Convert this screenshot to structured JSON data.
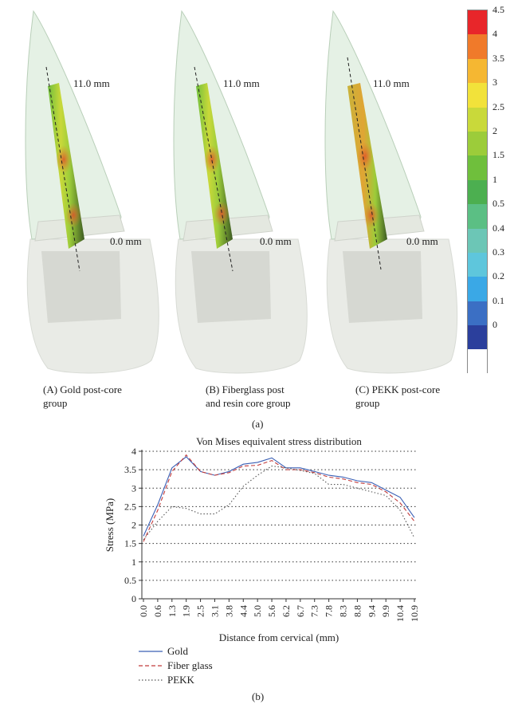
{
  "figure_a": {
    "panel_label": "(a)",
    "teeth": [
      {
        "top_label": "11.0 mm",
        "bottom_label": "0.0 mm",
        "caption_line1": "(A) Gold post-core",
        "caption_line2": "group"
      },
      {
        "top_label": "11.0 mm",
        "bottom_label": "0.0 mm",
        "caption_line1": "(B) Fiberglass post",
        "caption_line2": "and resin core group"
      },
      {
        "top_label": "11.0 mm",
        "bottom_label": "0.0 mm",
        "caption_line1": "(C) PEKK post-core",
        "caption_line2": "group"
      }
    ],
    "color_scale": {
      "labels": [
        "4.5",
        "4",
        "3.5",
        "3",
        "2.5",
        "2",
        "1.5",
        "1",
        "0.5",
        "0.4",
        "0.3",
        "0.2",
        "0.1",
        "0"
      ],
      "colors": [
        "#e8262a",
        "#f07a2a",
        "#f5b732",
        "#f2e23a",
        "#c9d93a",
        "#9ccc3a",
        "#6fbf3c",
        "#4caf50",
        "#5bbf84",
        "#6cc6b6",
        "#5ec6dc",
        "#3aa8e6",
        "#3b6fc4",
        "#2b3f9c",
        "#ffffff"
      ]
    }
  },
  "figure_b": {
    "panel_label": "(b)",
    "chart_data": {
      "type": "line",
      "title": "Von Mises equivalent stress distribution",
      "xlabel": "Distance from cervical (mm)",
      "ylabel": "Stress (MPa)",
      "ylim": [
        0,
        4
      ],
      "yticks": [
        "0",
        "0.5",
        "1",
        "1.5",
        "2",
        "2.5",
        "3",
        "3.5",
        "4"
      ],
      "x": [
        "0.0",
        "0.6",
        "1.3",
        "1.9",
        "2.5",
        "3.1",
        "3.8",
        "4.4",
        "5.0",
        "5.6",
        "6.2",
        "6.7",
        "7.3",
        "7.8",
        "8.3",
        "8.8",
        "9.4",
        "9.9",
        "10.4",
        "10.9"
      ],
      "grid": "horizontal dotted",
      "series": [
        {
          "name": "Gold",
          "color": "#3a5fb5",
          "style": "solid",
          "values": [
            1.7,
            2.55,
            3.55,
            3.85,
            3.45,
            3.35,
            3.45,
            3.65,
            3.7,
            3.82,
            3.55,
            3.55,
            3.45,
            3.35,
            3.3,
            3.2,
            3.15,
            2.95,
            2.75,
            2.2
          ]
        },
        {
          "name": "Fiber glass",
          "color": "#c23b3b",
          "style": "dashed",
          "values": [
            1.55,
            2.4,
            3.45,
            3.9,
            3.45,
            3.35,
            3.42,
            3.6,
            3.62,
            3.75,
            3.5,
            3.5,
            3.42,
            3.3,
            3.25,
            3.15,
            3.1,
            2.9,
            2.6,
            2.1
          ]
        },
        {
          "name": "PEKK",
          "color": "#555555",
          "style": "dotted",
          "values": [
            1.6,
            2.1,
            2.5,
            2.45,
            2.3,
            2.3,
            2.55,
            3.05,
            3.35,
            3.6,
            3.55,
            3.48,
            3.4,
            3.1,
            3.1,
            3.0,
            2.9,
            2.8,
            2.4,
            1.65
          ]
        }
      ]
    }
  }
}
